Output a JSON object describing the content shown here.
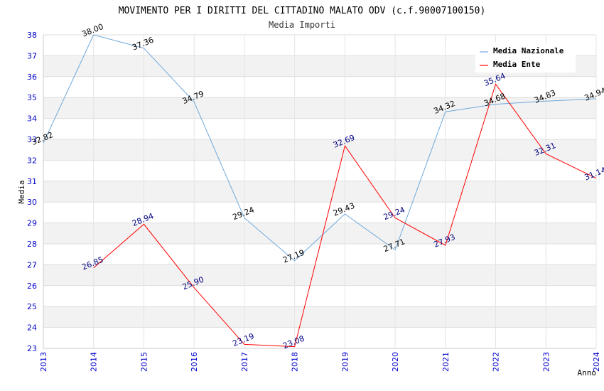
{
  "chart_data": {
    "type": "line",
    "title": "MOVIMENTO PER I DIRITTI DEL CITTADINO MALATO ODV (c.f.90007100150)",
    "subtitle": "Media Importi",
    "xlabel": "Anno",
    "ylabel": "Media",
    "ylim": [
      23,
      38
    ],
    "y_ticks": [
      "23",
      "24",
      "25",
      "26",
      "27",
      "28",
      "29",
      "30",
      "31",
      "32",
      "33",
      "34",
      "35",
      "36",
      "37",
      "38"
    ],
    "x_ticks": [
      "2013",
      "2014",
      "2015",
      "2016",
      "2017",
      "2018",
      "2019",
      "2020",
      "2021",
      "2022",
      "2023",
      "2024"
    ],
    "grid": true,
    "legend_position": "top-right",
    "series": [
      {
        "name": "Media Nazionale",
        "color": "#6fa8dc",
        "label_color": "#000000",
        "x": [
          2013,
          2014,
          2015,
          2016,
          2017,
          2018,
          2019,
          2020,
          2021,
          2022,
          2023,
          2024
        ],
        "values": [
          32.82,
          38.0,
          37.36,
          34.79,
          29.24,
          27.19,
          29.43,
          27.71,
          34.32,
          34.68,
          34.83,
          34.94
        ],
        "labels": [
          "32.82",
          "38.00",
          "37.36",
          "34.79",
          "29.24",
          "27.19",
          "29.43",
          "27.71",
          "34.32",
          "34.68",
          "34.83",
          "34.94"
        ]
      },
      {
        "name": "Media Ente",
        "color": "#ff0000",
        "label_color": "#000080",
        "x": [
          2014,
          2015,
          2016,
          2017,
          2018,
          2019,
          2020,
          2021,
          2022,
          2023,
          2024
        ],
        "values": [
          26.85,
          28.94,
          25.9,
          23.19,
          23.08,
          32.69,
          29.24,
          27.93,
          35.64,
          32.31,
          31.14
        ],
        "labels": [
          "26.85",
          "28.94",
          "25.90",
          "23.19",
          "23.08",
          "32.69",
          "29.24",
          "27.93",
          "35.64",
          "32.31",
          "31.14"
        ]
      }
    ]
  }
}
